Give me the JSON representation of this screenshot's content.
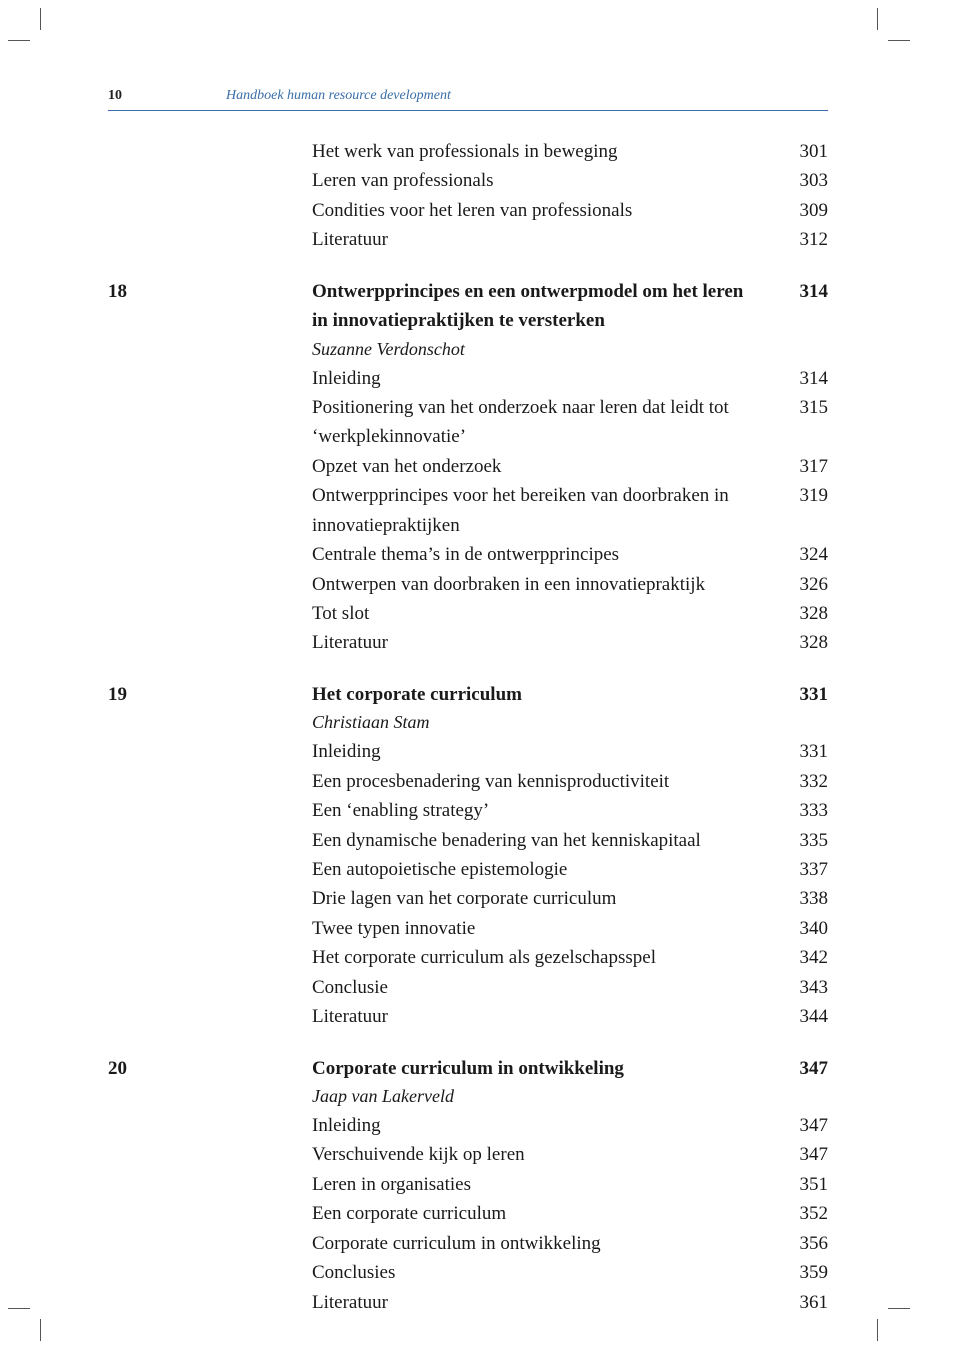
{
  "header": {
    "page_number": "10",
    "running_title": "Handboek human resource development",
    "rule_color": "#3a6ea8",
    "title_color": "#3a6ea8"
  },
  "toc": {
    "pre_entries": [
      {
        "title": "Het werk van professionals in beweging",
        "page": "301"
      },
      {
        "title": "Leren van professionals",
        "page": "303"
      },
      {
        "title": "Condities voor het leren van professionals",
        "page": "309"
      },
      {
        "title": "Literatuur",
        "page": "312"
      }
    ],
    "chapters": [
      {
        "number": "18",
        "title": "Ontwerpprincipes en een ontwerpmodel om het leren in innovatiepraktijken te versterken",
        "page": "314",
        "author": "Suzanne Verdonschot",
        "entries": [
          {
            "title": "Inleiding",
            "page": "314"
          },
          {
            "title": "Positionering van het onderzoek naar leren dat leidt tot ‘werkplekinnovatie’",
            "page": "315"
          },
          {
            "title": "Opzet van het onderzoek",
            "page": "317"
          },
          {
            "title": "Ontwerpprincipes voor het bereiken van doorbraken in innovatiepraktijken",
            "page": "319"
          },
          {
            "title": "Centrale thema’s in de ontwerpprincipes",
            "page": "324"
          },
          {
            "title": "Ontwerpen van doorbraken in een innovatiepraktijk",
            "page": "326"
          },
          {
            "title": "Tot slot",
            "page": "328"
          },
          {
            "title": "Literatuur",
            "page": "328"
          }
        ]
      },
      {
        "number": "19",
        "title": "Het corporate curriculum",
        "page": "331",
        "author": "Christiaan Stam",
        "entries": [
          {
            "title": "Inleiding",
            "page": "331"
          },
          {
            "title": "Een procesbenadering van kennisproductiviteit",
            "page": "332"
          },
          {
            "title": "Een ‘enabling strategy’",
            "page": "333"
          },
          {
            "title": "Een dynamische benadering van het kenniskapitaal",
            "page": "335"
          },
          {
            "title": "Een autopoietische epistemologie",
            "page": "337"
          },
          {
            "title": "Drie lagen van het corporate curriculum",
            "page": "338"
          },
          {
            "title": "Twee typen innovatie",
            "page": "340"
          },
          {
            "title": "Het corporate curriculum als gezelschapsspel",
            "page": "342"
          },
          {
            "title": "Conclusie",
            "page": "343"
          },
          {
            "title": "Literatuur",
            "page": "344"
          }
        ]
      },
      {
        "number": "20",
        "title": "Corporate curriculum in ontwikkeling",
        "page": "347",
        "author": "Jaap van Lakerveld",
        "entries": [
          {
            "title": "Inleiding",
            "page": "347"
          },
          {
            "title": "Verschuivende kijk op leren",
            "page": "347"
          },
          {
            "title": "Leren in organisaties",
            "page": "351"
          },
          {
            "title": "Een corporate curriculum",
            "page": "352"
          },
          {
            "title": "Corporate curriculum in ontwikkeling",
            "page": "356"
          },
          {
            "title": "Conclusies",
            "page": "359"
          },
          {
            "title": "Literatuur",
            "page": "361"
          }
        ]
      }
    ]
  }
}
